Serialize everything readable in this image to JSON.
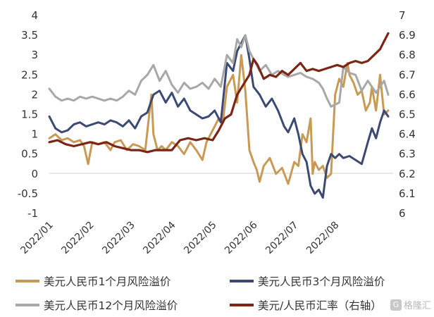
{
  "chart_data": {
    "type": "line",
    "title": "",
    "xlabel": "",
    "y_left": {
      "ylim": [
        -1,
        4
      ],
      "ticks": [
        "-1",
        "-0.5",
        "0",
        "0.5",
        "1",
        "1.5",
        "2",
        "2.5",
        "3",
        "3.5",
        "4"
      ]
    },
    "y_right": {
      "ylim": [
        6,
        7
      ],
      "ticks": [
        "6",
        "6.1",
        "6.2",
        "6.3",
        "6.4",
        "6.5",
        "6.6",
        "6.7",
        "6.8",
        "6.9",
        "7"
      ]
    },
    "x_ticks": [
      "2022/01",
      "2022/02",
      "2022/03",
      "2022/04",
      "2022/05",
      "2022/06",
      "2022/07",
      "2022/08"
    ],
    "x_range": [
      0,
      8.42
    ],
    "grid": false,
    "legend_position": "bottom",
    "series": [
      {
        "name": "美元人民币1个月风险溢价",
        "axis": "left",
        "color": "#c99a55",
        "x": [
          0,
          0.15,
          0.3,
          0.45,
          0.6,
          0.75,
          0.85,
          0.95,
          1.05,
          1.2,
          1.35,
          1.5,
          1.6,
          1.75,
          1.9,
          2.05,
          2.2,
          2.35,
          2.5,
          2.55,
          2.65,
          2.75,
          2.85,
          3.0,
          3.15,
          3.3,
          3.45,
          3.6,
          3.75,
          3.85,
          3.95,
          4.05,
          4.15,
          4.25,
          4.35,
          4.5,
          4.6,
          4.7,
          4.8,
          4.9,
          5.0,
          5.08,
          5.15,
          5.25,
          5.4,
          5.55,
          5.7,
          5.85,
          6.0,
          6.1,
          6.2,
          6.3,
          6.4,
          6.45,
          6.5,
          6.6,
          6.7,
          6.8,
          6.9,
          7.0,
          7.1,
          7.2,
          7.3,
          7.35,
          7.45,
          7.55,
          7.65,
          7.75,
          7.85,
          7.9,
          8.0,
          8.1,
          8.2,
          8.3
        ],
        "y": [
          0.9,
          1.0,
          0.85,
          0.9,
          0.8,
          0.85,
          0.7,
          0.25,
          0.8,
          0.75,
          0.8,
          0.6,
          0.8,
          0.85,
          0.6,
          0.75,
          0.7,
          0.6,
          2.0,
          1.0,
          0.6,
          0.7,
          0.6,
          0.8,
          0.7,
          0.5,
          0.8,
          0.6,
          0.35,
          0.8,
          1.0,
          1.2,
          1.4,
          1.3,
          2.2,
          2.5,
          1.8,
          3.0,
          2.1,
          0.6,
          0.3,
          0.1,
          -0.2,
          0.2,
          0.4,
          0.0,
          0.15,
          -0.25,
          0.3,
          0.2,
          1.0,
          0.8,
          1.4,
          0.0,
          0.3,
          0.1,
          0.2,
          -0.1,
          0.0,
          2.0,
          2.4,
          2.2,
          2.8,
          2.5,
          2.3,
          2.0,
          2.1,
          1.6,
          1.8,
          2.2,
          1.6,
          2.5,
          1.5,
          1.6
        ]
      },
      {
        "name": "美元人民币3个月风险溢价",
        "axis": "left",
        "color": "#3c4a73",
        "x": [
          0,
          0.15,
          0.3,
          0.45,
          0.6,
          0.75,
          0.9,
          1.05,
          1.2,
          1.35,
          1.5,
          1.65,
          1.8,
          1.95,
          2.1,
          2.25,
          2.4,
          2.55,
          2.7,
          2.85,
          3.0,
          3.15,
          3.3,
          3.45,
          3.6,
          3.75,
          3.9,
          4.05,
          4.2,
          4.35,
          4.5,
          4.6,
          4.7,
          4.8,
          4.9,
          5.0,
          5.15,
          5.3,
          5.45,
          5.6,
          5.75,
          5.85,
          6.0,
          6.1,
          6.2,
          6.3,
          6.4,
          6.5,
          6.6,
          6.7,
          6.8,
          6.9,
          7.0,
          7.1,
          7.2,
          7.35,
          7.5,
          7.65,
          7.8,
          7.9,
          8.0,
          8.1,
          8.2,
          8.3
        ],
        "y": [
          1.45,
          1.15,
          1.05,
          1.1,
          1.25,
          1.3,
          1.2,
          1.25,
          1.3,
          1.25,
          1.35,
          1.3,
          1.2,
          1.35,
          1.15,
          1.45,
          1.55,
          2.0,
          2.1,
          1.8,
          2.05,
          1.7,
          1.9,
          1.6,
          1.5,
          1.4,
          1.45,
          1.6,
          1.3,
          2.8,
          2.6,
          3.1,
          3.3,
          3.5,
          2.9,
          2.2,
          2.0,
          1.7,
          1.9,
          1.6,
          1.2,
          1.05,
          1.4,
          1.0,
          0.5,
          0.3,
          -0.3,
          -0.5,
          -0.4,
          -0.6,
          0.2,
          0.5,
          0.4,
          0.5,
          0.4,
          0.45,
          0.35,
          0.25,
          0.8,
          1.15,
          0.9,
          1.3,
          1.6,
          1.45
        ]
      },
      {
        "name": "美元人民币12个月风险溢价",
        "axis": "left",
        "color": "#a8a8a8",
        "x": [
          0,
          0.15,
          0.3,
          0.45,
          0.6,
          0.75,
          0.9,
          1.05,
          1.2,
          1.35,
          1.5,
          1.65,
          1.8,
          1.95,
          2.1,
          2.25,
          2.4,
          2.55,
          2.7,
          2.85,
          3.0,
          3.15,
          3.3,
          3.45,
          3.6,
          3.75,
          3.9,
          4.05,
          4.2,
          4.35,
          4.5,
          4.6,
          4.7,
          4.8,
          4.9,
          5.0,
          5.15,
          5.3,
          5.45,
          5.6,
          5.75,
          5.85,
          6.0,
          6.15,
          6.3,
          6.45,
          6.6,
          6.7,
          6.8,
          6.9,
          7.0,
          7.1,
          7.2,
          7.35,
          7.5,
          7.65,
          7.8,
          7.9,
          8.0,
          8.1,
          8.2,
          8.3
        ],
        "y": [
          2.15,
          1.95,
          1.85,
          1.9,
          1.85,
          1.95,
          1.9,
          1.95,
          1.9,
          1.85,
          1.9,
          1.85,
          1.95,
          2.1,
          2.0,
          2.35,
          2.5,
          2.75,
          2.35,
          2.6,
          2.25,
          2.05,
          2.3,
          2.15,
          2.2,
          2.3,
          2.15,
          2.4,
          2.2,
          3.0,
          2.8,
          3.4,
          3.2,
          3.5,
          3.1,
          2.9,
          2.6,
          2.75,
          2.5,
          2.6,
          2.5,
          2.45,
          2.5,
          2.55,
          2.45,
          2.4,
          2.3,
          2.15,
          1.9,
          1.7,
          1.75,
          1.8,
          2.7,
          2.55,
          2.5,
          2.1,
          2.35,
          2.2,
          2.05,
          2.2,
          2.35,
          2.0
        ]
      },
      {
        "name": "美元/人民币汇率（右轴）",
        "axis": "right",
        "color": "#7b2515",
        "x": [
          0,
          0.2,
          0.4,
          0.6,
          0.8,
          1.0,
          1.2,
          1.4,
          1.6,
          1.8,
          2.0,
          2.2,
          2.4,
          2.6,
          2.8,
          3.0,
          3.2,
          3.4,
          3.6,
          3.8,
          4.0,
          4.15,
          4.3,
          4.45,
          4.6,
          4.75,
          4.9,
          5.0,
          5.1,
          5.25,
          5.4,
          5.55,
          5.7,
          5.85,
          6.0,
          6.15,
          6.3,
          6.45,
          6.6,
          6.75,
          6.9,
          7.05,
          7.2,
          7.35,
          7.5,
          7.65,
          7.8,
          7.95,
          8.1,
          8.2,
          8.3
        ],
        "y": [
          6.36,
          6.37,
          6.35,
          6.34,
          6.35,
          6.36,
          6.35,
          6.36,
          6.34,
          6.33,
          6.32,
          6.32,
          6.31,
          6.32,
          6.32,
          6.32,
          6.37,
          6.38,
          6.37,
          6.38,
          6.37,
          6.42,
          6.48,
          6.5,
          6.6,
          6.65,
          6.7,
          6.78,
          6.75,
          6.68,
          6.7,
          6.69,
          6.72,
          6.7,
          6.73,
          6.76,
          6.72,
          6.73,
          6.72,
          6.73,
          6.74,
          6.75,
          6.74,
          6.76,
          6.77,
          6.76,
          6.77,
          6.8,
          6.83,
          6.87,
          6.91
        ]
      }
    ]
  },
  "watermark": "格隆汇"
}
